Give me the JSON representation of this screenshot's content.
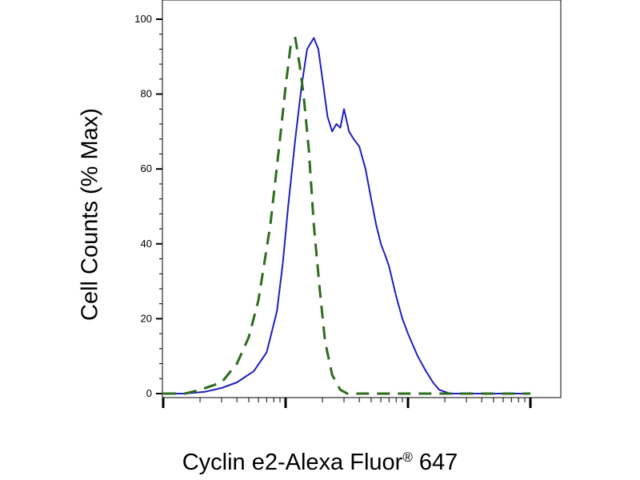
{
  "chart_data": {
    "type": "line",
    "title": "",
    "ylabel": "Cell Counts (% Max)",
    "xlabel": {
      "main": "Cyclin e2-Alexa Fluor",
      "registered": "®",
      "suffix": " 647"
    },
    "x_scale": "log",
    "xlim": [
      10,
      10000
    ],
    "ylim": [
      0,
      100
    ],
    "yticks": [
      "0",
      "20",
      "40",
      "60",
      "80",
      "100"
    ],
    "grid": false,
    "series": [
      {
        "style": "solid",
        "color": "#1f1fbf",
        "x": [
          10,
          15,
          22,
          30,
          40,
          55,
          70,
          85,
          95,
          105,
          120,
          135,
          150,
          170,
          185,
          200,
          220,
          240,
          260,
          280,
          300,
          330,
          360,
          400,
          450,
          500,
          550,
          600,
          650,
          700,
          800,
          900,
          1000,
          1200,
          1400,
          1600,
          1800,
          2000,
          2200,
          2500,
          2800,
          3500,
          5000,
          7000,
          10000
        ],
        "y": [
          0,
          0,
          0.5,
          1.5,
          3,
          6,
          11,
          22,
          35,
          50,
          68,
          82,
          92,
          95,
          92,
          84,
          74,
          70,
          72,
          71,
          76,
          70,
          68,
          66,
          60,
          52,
          45,
          40,
          37,
          34,
          26,
          20,
          16,
          10,
          6,
          3,
          1,
          0.5,
          0,
          0,
          0,
          0,
          0,
          0,
          0
        ]
      },
      {
        "style": "dashed",
        "color": "#2e6b1e",
        "x": [
          10,
          15,
          20,
          30,
          40,
          50,
          60,
          75,
          90,
          100,
          110,
          120,
          130,
          140,
          155,
          170,
          190,
          210,
          240,
          280,
          320,
          360,
          400,
          450,
          500,
          600,
          800,
          1000,
          2000,
          5000,
          10000
        ],
        "y": [
          0,
          0,
          1,
          3,
          8,
          15,
          25,
          45,
          68,
          82,
          93,
          95,
          88,
          80,
          65,
          45,
          28,
          14,
          5,
          1,
          0,
          0,
          0,
          0,
          0,
          0,
          0,
          0,
          0,
          0,
          0
        ]
      }
    ]
  }
}
